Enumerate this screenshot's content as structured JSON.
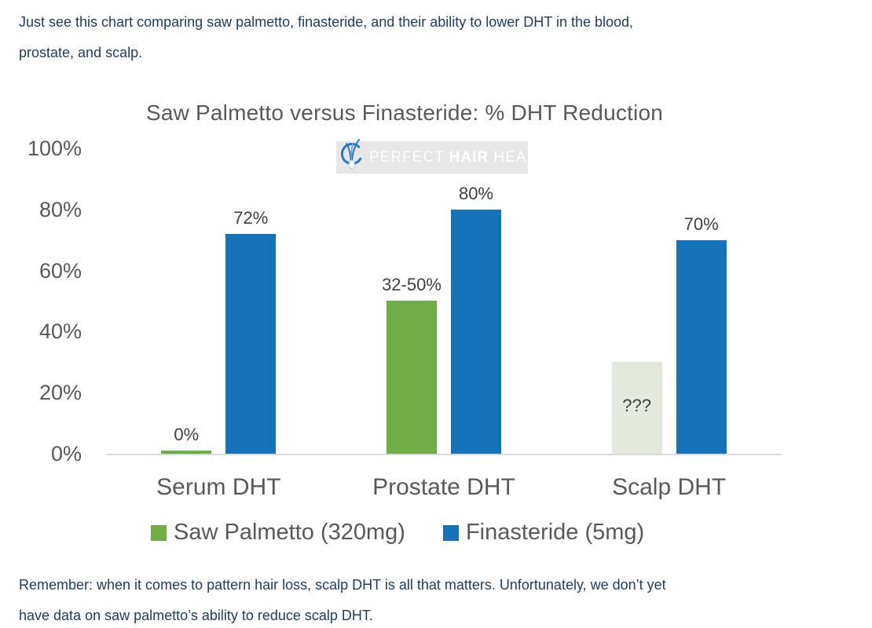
{
  "page": {
    "background_color": "#ffffff",
    "body_text_color": "#1f3c60",
    "intro_lines": [
      "Just see this chart comparing saw palmetto, finasteride, and their ability to lower DHT in the blood,",
      "prostate, and scalp."
    ],
    "footer_lines": [
      "Remember: when it comes to pattern hair loss, scalp DHT is all that matters. Unfortunately, we don’t yet",
      "have data on saw palmetto’s ability to reduce scalp DHT."
    ]
  },
  "watermark": {
    "icon": "hair-follicle-logo-icon",
    "prefix": "PERFECT",
    "bold": "HAIR",
    "suffix": "HEALTH",
    "background_color": "#e7e7e7",
    "icon_color": "#2b7bc0"
  },
  "chart_data": {
    "type": "bar",
    "title": "Saw Palmetto versus Finasteride: % DHT Reduction",
    "xlabel": "",
    "ylabel": "",
    "categories": [
      "Serum DHT",
      "Prostate DHT",
      "Scalp DHT"
    ],
    "series": [
      {
        "name": "Saw Palmetto (320mg)",
        "color": "#70ad47",
        "values": [
          0,
          50,
          null
        ],
        "bar_heights_pct": [
          1,
          50,
          30
        ],
        "labels": [
          "0%",
          "32-50%",
          "???"
        ],
        "label_positions": [
          "above",
          "above",
          "inside"
        ],
        "bar_colors": [
          "#70ad47",
          "#70ad47",
          "#e4e9dd"
        ]
      },
      {
        "name": "Finasteride (5mg)",
        "color": "#1673ba",
        "values": [
          72,
          80,
          70
        ],
        "bar_heights_pct": [
          72,
          80,
          70
        ],
        "labels": [
          "72%",
          "80%",
          "70%"
        ],
        "label_positions": [
          "above",
          "above",
          "above"
        ],
        "bar_colors": [
          "#1673ba",
          "#1673ba",
          "#1673ba"
        ]
      }
    ],
    "y_axis": {
      "ticks": [
        "0%",
        "20%",
        "40%",
        "60%",
        "80%",
        "100%"
      ],
      "tick_values": [
        0,
        20,
        40,
        60,
        80,
        100
      ],
      "range": [
        0,
        100
      ]
    },
    "grid": false,
    "legend_position": "bottom",
    "axis_line_color": "#dcdcdc",
    "tick_text_color": "#595959",
    "data_label_color": "#3f3f3f"
  }
}
